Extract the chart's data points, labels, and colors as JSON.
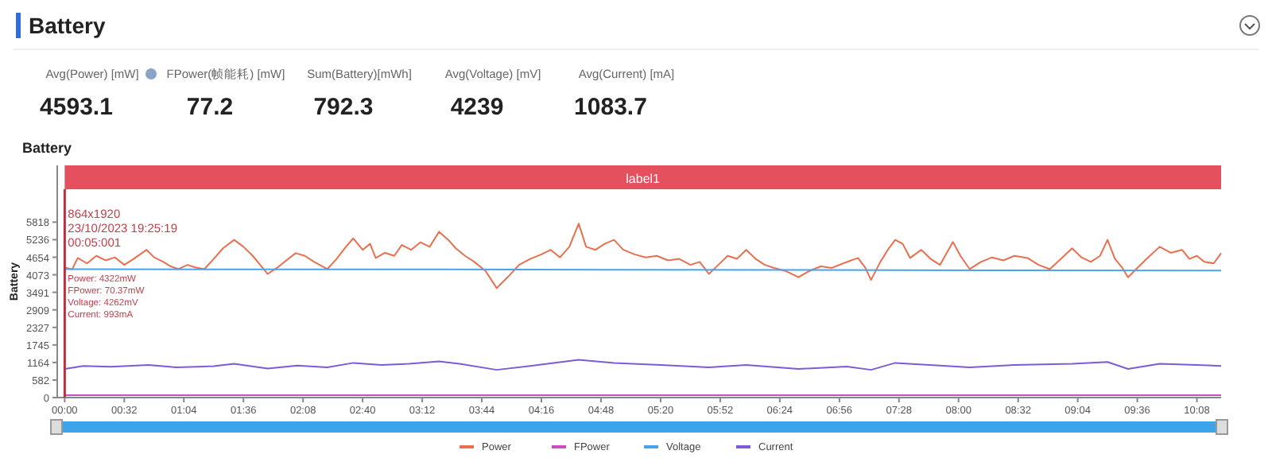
{
  "chart_data": [
    {
      "type": "other",
      "title": "Battery",
      "annotations": [
        "Avg(Power) [mW]",
        "4593.1",
        "FPower(帧能耗) [mW]",
        "77.2",
        "Sum(Battery)[mWh]",
        "792.3",
        "Avg(Voltage) [mV]",
        "4239",
        "Avg(Current) [mA]",
        "1083.7"
      ]
    },
    {
      "type": "line",
      "title": "Battery",
      "ylabel": "Battery",
      "legend": "bottom",
      "grid": false,
      "marker": "none",
      "line_style": "solid",
      "xlim": [
        -4,
        621
      ],
      "ylim": [
        0,
        7700
      ],
      "xticks": [
        {
          "value": 0,
          "label": "00:00"
        },
        {
          "value": 32,
          "label": "00:32"
        },
        {
          "value": 64,
          "label": "01:04"
        },
        {
          "value": 96,
          "label": "01:36"
        },
        {
          "value": 128,
          "label": "02:08"
        },
        {
          "value": 160,
          "label": "02:40"
        },
        {
          "value": 192,
          "label": "03:12"
        },
        {
          "value": 224,
          "label": "03:44"
        },
        {
          "value": 256,
          "label": "04:16"
        },
        {
          "value": 288,
          "label": "04:48"
        },
        {
          "value": 320,
          "label": "05:20"
        },
        {
          "value": 352,
          "label": "05:52"
        },
        {
          "value": 384,
          "label": "06:24"
        },
        {
          "value": 416,
          "label": "06:56"
        },
        {
          "value": 448,
          "label": "07:28"
        },
        {
          "value": 480,
          "label": "08:00"
        },
        {
          "value": 512,
          "label": "08:32"
        },
        {
          "value": 544,
          "label": "09:04"
        },
        {
          "value": 576,
          "label": "09:36"
        },
        {
          "value": 608,
          "label": "10:08"
        }
      ],
      "yticks": [
        0,
        582,
        1164,
        1745,
        2327,
        2909,
        3491,
        4073,
        4654,
        5236,
        5818
      ],
      "ref_lines": [
        {
          "axis": "x",
          "value": 0,
          "color": "#b8323e"
        }
      ],
      "bands": [
        {
          "axis": "x",
          "from": 0,
          "to": 621,
          "label": "label1",
          "color": "#e5505e"
        }
      ],
      "annotations": [
        "864x1920",
        "23/10/2023 19:25:19",
        "00:05:001",
        "Power: 4322mW",
        "FPower: 70.37mW",
        "Voltage: 4262mV",
        "Current: 993mA"
      ],
      "series": [
        {
          "name": "Power",
          "color": "#e8704f",
          "x": [
            0,
            4,
            7,
            12,
            17,
            22,
            27,
            32,
            37,
            44,
            48,
            53,
            57,
            61,
            66,
            70,
            75,
            80,
            85,
            91,
            96,
            101,
            105,
            109,
            114,
            119,
            124,
            129,
            134,
            141,
            146,
            151,
            155,
            160,
            164,
            167,
            172,
            177,
            181,
            186,
            191,
            196,
            201,
            206,
            210,
            215,
            220,
            226,
            232,
            238,
            244,
            250,
            256,
            261,
            266,
            271,
            276,
            280,
            285,
            290,
            295,
            300,
            306,
            312,
            318,
            324,
            330,
            336,
            341,
            346,
            351,
            356,
            361,
            366,
            371,
            376,
            381,
            387,
            394,
            400,
            406,
            412,
            418,
            426,
            430,
            433,
            438,
            442,
            446,
            450,
            454,
            460,
            465,
            470,
            477,
            481,
            486,
            492,
            498,
            504,
            510,
            517,
            523,
            529,
            535,
            541,
            546,
            551,
            556,
            560,
            564,
            568,
            571,
            576,
            581,
            588,
            594,
            600,
            604,
            608,
            612,
            617,
            621
          ],
          "values": [
            4320,
            4250,
            4630,
            4450,
            4700,
            4550,
            4650,
            4400,
            4600,
            4900,
            4650,
            4500,
            4350,
            4260,
            4400,
            4320,
            4260,
            4600,
            4950,
            5230,
            5000,
            4700,
            4400,
            4100,
            4300,
            4550,
            4790,
            4700,
            4500,
            4260,
            4600,
            5000,
            5280,
            4900,
            5100,
            4630,
            4800,
            4700,
            5060,
            4900,
            5150,
            5000,
            5500,
            5230,
            4950,
            4700,
            4500,
            4200,
            3630,
            4000,
            4400,
            4600,
            4750,
            4900,
            4650,
            5000,
            5770,
            5000,
            4900,
            5100,
            5230,
            4900,
            4750,
            4650,
            4700,
            4550,
            4600,
            4400,
            4500,
            4100,
            4400,
            4700,
            4600,
            4900,
            4600,
            4400,
            4300,
            4200,
            3990,
            4200,
            4350,
            4300,
            4450,
            4630,
            4300,
            3900,
            4500,
            4900,
            5230,
            5100,
            4630,
            4900,
            4600,
            4400,
            5160,
            4700,
            4260,
            4500,
            4650,
            4550,
            4700,
            4630,
            4400,
            4260,
            4600,
            4950,
            4650,
            4500,
            4700,
            5230,
            4600,
            4300,
            3990,
            4300,
            4600,
            5000,
            4800,
            4900,
            4600,
            4700,
            4500,
            4450,
            4790
          ]
        },
        {
          "name": "FPower",
          "color": "#c94fbf",
          "x": [
            0,
            150,
            300,
            450,
            621
          ],
          "values": [
            80,
            80,
            80,
            80,
            80
          ]
        },
        {
          "name": "Voltage",
          "color": "#4aa3e8",
          "x": [
            0,
            100,
            200,
            300,
            400,
            500,
            621
          ],
          "values": [
            4260,
            4250,
            4250,
            4240,
            4230,
            4220,
            4210
          ]
        },
        {
          "name": "Current",
          "color": "#7d5bd6",
          "x": [
            0,
            10,
            25,
            45,
            60,
            80,
            91,
            109,
            125,
            141,
            155,
            170,
            185,
            201,
            212,
            232,
            250,
            276,
            295,
            320,
            346,
            366,
            394,
            420,
            433,
            446,
            470,
            486,
            510,
            541,
            560,
            571,
            588,
            608,
            621
          ],
          "values": [
            950,
            1050,
            1020,
            1080,
            1000,
            1040,
            1120,
            960,
            1060,
            1000,
            1150,
            1080,
            1120,
            1200,
            1120,
            920,
            1050,
            1250,
            1150,
            1080,
            1000,
            1080,
            950,
            1030,
            920,
            1150,
            1060,
            1000,
            1080,
            1120,
            1180,
            950,
            1120,
            1080,
            1050
          ]
        }
      ]
    }
  ]
}
